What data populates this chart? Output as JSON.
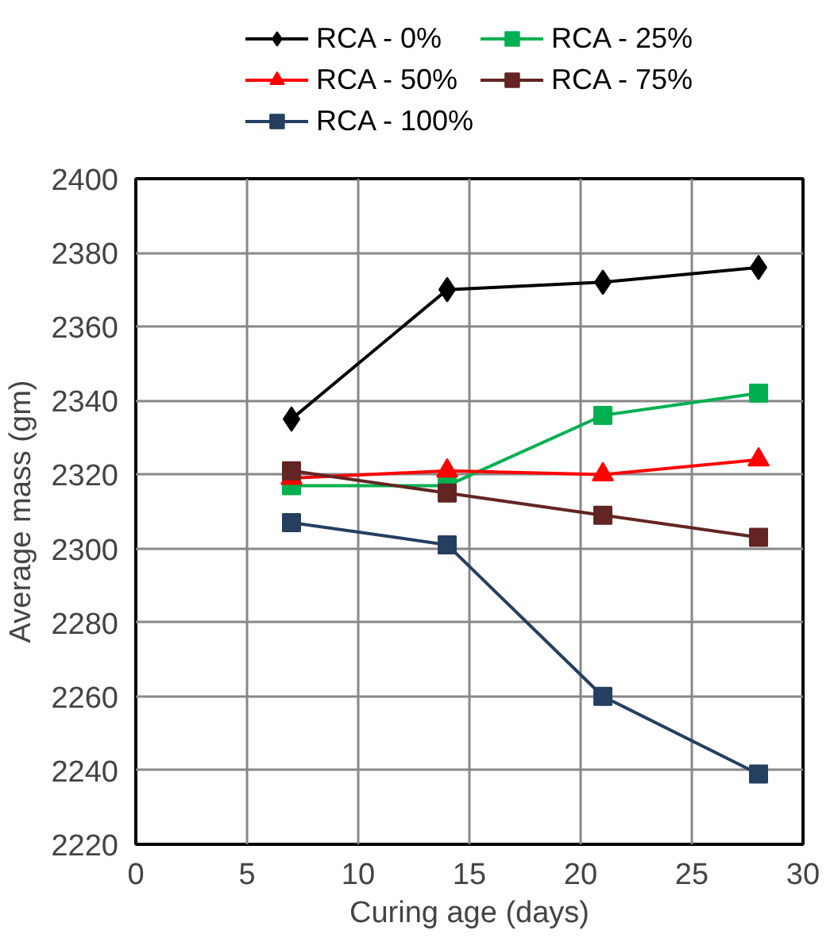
{
  "chart_data": {
    "type": "line",
    "xlabel": "Curing age (days)",
    "ylabel": "Average mass (gm)",
    "x": [
      7,
      14,
      21,
      28
    ],
    "series": [
      {
        "name": "RCA - 0%",
        "color": "#000000",
        "marker": "diamond",
        "values": [
          2335,
          2370,
          2372,
          2376
        ]
      },
      {
        "name": "RCA - 25%",
        "color": "#00b050",
        "marker": "square",
        "values": [
          2317,
          2317,
          2336,
          2342
        ]
      },
      {
        "name": "RCA - 50%",
        "color": "#ff0000",
        "marker": "triangle",
        "values": [
          2319,
          2321,
          2320,
          2324
        ]
      },
      {
        "name": "RCA - 75%",
        "color": "#632523",
        "marker": "square",
        "values": [
          2321,
          2315,
          2309,
          2303
        ]
      },
      {
        "name": "RCA - 100%",
        "color": "#243f60",
        "marker": "square",
        "values": [
          2307,
          2301,
          2260,
          2239
        ]
      }
    ],
    "xlim": [
      0,
      30
    ],
    "xticks": [
      0,
      5,
      10,
      15,
      20,
      25,
      30
    ],
    "ylim": [
      2220,
      2400
    ],
    "yticks": [
      2220,
      2240,
      2260,
      2280,
      2300,
      2320,
      2340,
      2360,
      2380,
      2400
    ],
    "grid": true,
    "legend": "top",
    "line_style": "solid"
  }
}
